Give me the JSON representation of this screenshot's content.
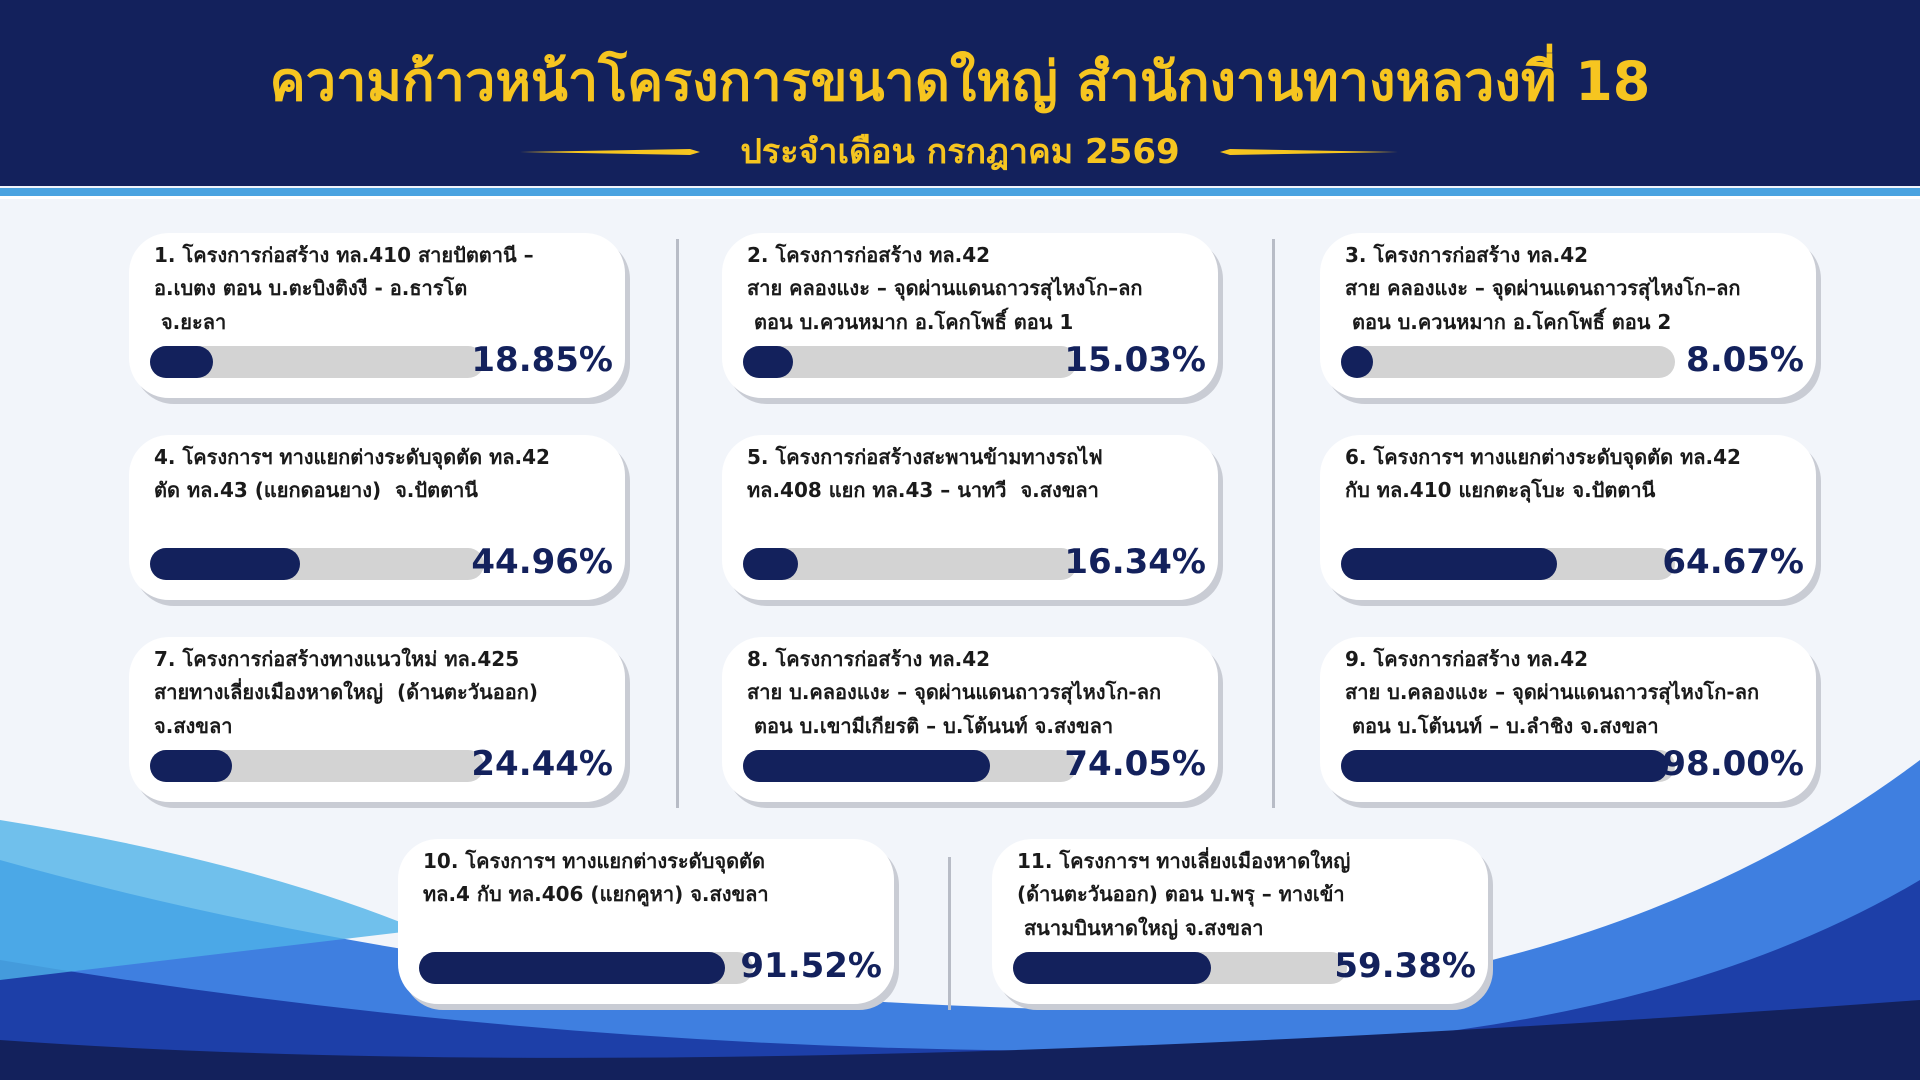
{
  "header": {
    "title": "ความก้าวหน้าโครงการขนาดใหญ่ สำนักงานทางหลวงที่ 18",
    "subtitle": "ประจำเดือน กรกฎาคม  2569"
  },
  "xlim": [
    0,
    100
  ],
  "projects": [
    {
      "lines": [
        "1. โครงการก่อสร้าง ทล.410 สายปัตตานี –",
        "อ.เบตง ตอน บ.ตะบิงติงงี - อ.ธารโต",
        " จ.ยะลา"
      ],
      "value": 18.85,
      "value_label": "18.85%"
    },
    {
      "lines": [
        "2. โครงการก่อสร้าง ทล.42",
        "สาย คลองแงะ – จุดผ่านแดนถาวรสุไหงโก–ลก",
        " ตอน บ.ควนหมาก อ.โคกโพธิ์ ตอน 1"
      ],
      "value": 15.03,
      "value_label": "15.03%"
    },
    {
      "lines": [
        "3. โครงการก่อสร้าง ทล.42",
        "สาย คลองแงะ – จุดผ่านแดนถาวรสุไหงโก–ลก",
        " ตอน บ.ควนหมาก อ.โคกโพธิ์ ตอน 2"
      ],
      "value": 8.05,
      "value_label": "8.05%"
    },
    {
      "lines": [
        "4. โครงการฯ ทางแยกต่างระดับจุดตัด ทล.42",
        "ตัด ทล.43 (แยกดอนยาง)  จ.ปัตตานี"
      ],
      "value": 44.96,
      "value_label": "44.96%"
    },
    {
      "lines": [
        "5. โครงการก่อสร้างสะพานข้ามทางรถไฟ",
        "ทล.408 แยก ทล.43 – นาทวี  จ.สงขลา"
      ],
      "value": 16.34,
      "value_label": "16.34%"
    },
    {
      "lines": [
        "6. โครงการฯ ทางแยกต่างระดับจุดตัด ทล.42",
        "กับ ทล.410 แยกตะลุโบะ จ.ปัตตานี"
      ],
      "value": 64.67,
      "value_label": "64.67%"
    },
    {
      "lines": [
        "7. โครงการก่อสร้างทางแนวใหม่ ทล.425",
        "สายทางเลี่ยงเมืองหาดใหญ่  (ด้านตะวันออก)",
        "จ.สงขลา"
      ],
      "value": 24.44,
      "value_label": "24.44%"
    },
    {
      "lines": [
        "8. โครงการก่อสร้าง ทล.42",
        "สาย บ.คลองแงะ – จุดผ่านแดนถาวรสุไหงโก-ลก",
        " ตอน บ.เขามีเกียรติ – บ.โต้นนท์ จ.สงขลา"
      ],
      "value": 74.05,
      "value_label": "74.05%"
    },
    {
      "lines": [
        "9. โครงการก่อสร้าง ทล.42",
        "สาย บ.คลองแงะ – จุดผ่านแดนถาวรสุไหงโก-ลก",
        " ตอน บ.โต้นนท์ – บ.ลำชิง จ.สงขลา"
      ],
      "value": 98.0,
      "value_label": "98.00%"
    },
    {
      "lines": [
        "10. โครงการฯ ทางแยกต่างระดับจุดตัด",
        "ทล.4 กับ ทล.406 (แยกคูหา) จ.สงขลา"
      ],
      "value": 91.52,
      "value_label": "91.52%"
    },
    {
      "lines": [
        "11. โครงการฯ ทางเลี่ยงเมืองหาดใหญ่",
        "(ด้านตะวันออก) ตอน บ.พรุ – ทางเข้า",
        " สนามบินหาดใหญ่ จ.สงขลา"
      ],
      "value": 59.38,
      "value_label": "59.38%"
    }
  ]
}
